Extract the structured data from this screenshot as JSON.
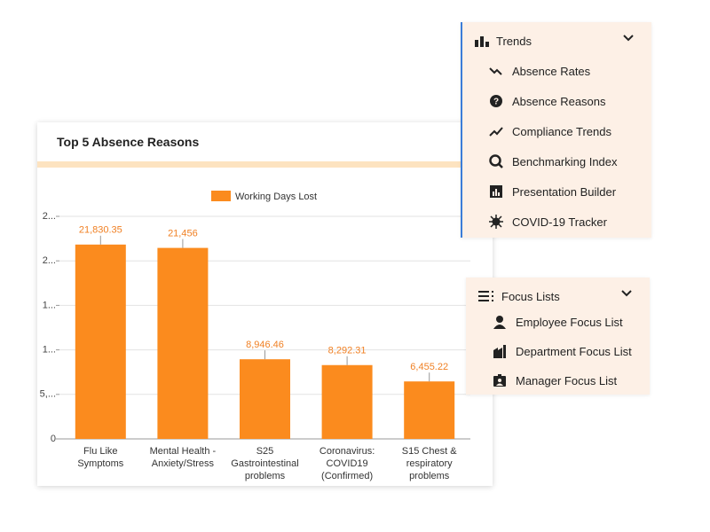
{
  "chart_data": {
    "type": "bar",
    "title": "Top 5 Absence Reasons",
    "categories": [
      "Flu Like\nSymptoms",
      "Mental Health -\nAnxiety/Stress",
      "S25\nGastrointestinal\nproblems",
      "Coronavirus:\nCOVID19\n(Confirmed)",
      "S15 Chest &\nrespiratory\nproblems"
    ],
    "series": [
      {
        "name": "Working Days Lost",
        "color": "#fb8b1e",
        "values": [
          21830.35,
          21456,
          8946.46,
          8292.31,
          6455.22
        ],
        "value_labels": [
          "21,830.35",
          "21,456",
          "8,946.46",
          "8,292.31",
          "6,455.22"
        ]
      }
    ],
    "ylim": [
      0,
      25000
    ],
    "yticks": [
      0,
      {
        "value": 5000,
        "label": "5,..."
      },
      {
        "value": 10000,
        "label": "1..."
      },
      {
        "value": 15000,
        "label": "1..."
      },
      {
        "value": 20000,
        "label": "2..."
      },
      {
        "value": 25000,
        "label": "2..."
      }
    ],
    "grid": true,
    "legend": "top"
  },
  "menus": [
    {
      "title": "Trends",
      "items": [
        "Absence Rates",
        "Absence Reasons",
        "Compliance Trends",
        "Benchmarking Index",
        "Presentation Builder",
        "COVID-19 Tracker"
      ]
    },
    {
      "title": "Focus Lists",
      "items": [
        "Employee Focus List",
        "Department Focus List",
        "Manager Focus List"
      ]
    }
  ]
}
